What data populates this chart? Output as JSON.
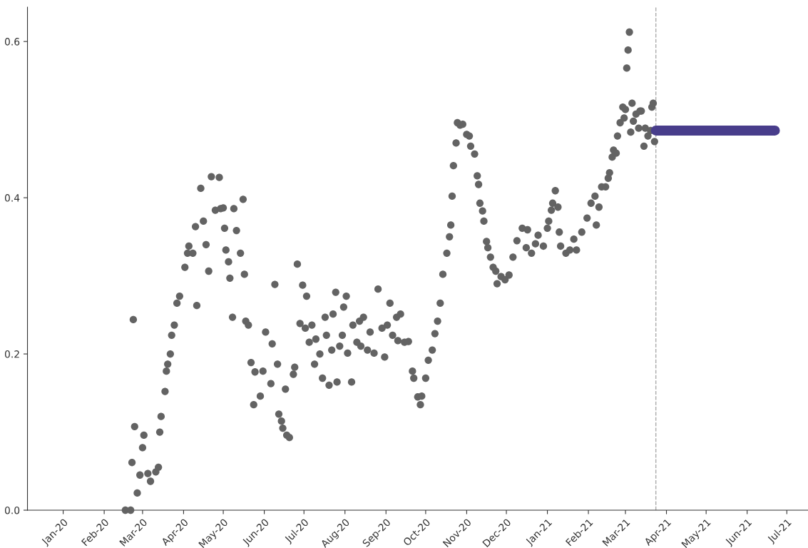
{
  "chart_data": {
    "type": "scatter",
    "grid": false,
    "legend": false,
    "xlim": [
      "2019-12-05",
      "2021-07-17"
    ],
    "ylim": [
      0,
      0.644
    ],
    "xticks": [
      {
        "value": "2020-01-01",
        "label": "Jan-20"
      },
      {
        "value": "2020-02-01",
        "label": "Feb-20"
      },
      {
        "value": "2020-03-01",
        "label": "Mar-20"
      },
      {
        "value": "2020-04-01",
        "label": "Apr-20"
      },
      {
        "value": "2020-05-01",
        "label": "May-20"
      },
      {
        "value": "2020-06-01",
        "label": "Jun-20"
      },
      {
        "value": "2020-07-01",
        "label": "Jul-20"
      },
      {
        "value": "2020-08-01",
        "label": "Aug-20"
      },
      {
        "value": "2020-09-01",
        "label": "Sep-20"
      },
      {
        "value": "2020-10-01",
        "label": "Oct-20"
      },
      {
        "value": "2020-11-01",
        "label": "Nov-20"
      },
      {
        "value": "2020-12-01",
        "label": "Dec-20"
      },
      {
        "value": "2021-01-01",
        "label": "Jan-21"
      },
      {
        "value": "2021-02-01",
        "label": "Feb-21"
      },
      {
        "value": "2021-03-01",
        "label": "Mar-21"
      },
      {
        "value": "2021-04-01",
        "label": "Apr-21"
      },
      {
        "value": "2021-05-01",
        "label": "May-21"
      },
      {
        "value": "2021-06-01",
        "label": "Jun-21"
      },
      {
        "value": "2021-07-01",
        "label": "Jul-21"
      }
    ],
    "yticks": [
      {
        "value": 0,
        "label": "0.0"
      },
      {
        "value": 0.2,
        "label": "0.2"
      },
      {
        "value": 0.4,
        "label": "0.4"
      },
      {
        "value": 0.6,
        "label": "0.6"
      }
    ],
    "ref_lines": [
      {
        "axis": "x",
        "value": "2021-03-24",
        "color": "#aaaaaa",
        "line_style": "dashed"
      }
    ],
    "series": [
      {
        "type": "scatter",
        "marker": "circle",
        "color": "#636363",
        "x": [
          "2020-02-17",
          "2020-02-21",
          "2020-02-22",
          "2020-02-23",
          "2020-02-24",
          "2020-02-26",
          "2020-02-28",
          "2020-03-01",
          "2020-03-02",
          "2020-03-05",
          "2020-03-07",
          "2020-03-11",
          "2020-03-13",
          "2020-03-14",
          "2020-03-15",
          "2020-03-18",
          "2020-03-19",
          "2020-03-20",
          "2020-03-22",
          "2020-03-23",
          "2020-03-25",
          "2020-03-27",
          "2020-03-29",
          "2020-04-02",
          "2020-04-04",
          "2020-04-05",
          "2020-04-08",
          "2020-04-10",
          "2020-04-11",
          "2020-04-14",
          "2020-04-16",
          "2020-04-18",
          "2020-04-20",
          "2020-04-22",
          "2020-04-25",
          "2020-04-28",
          "2020-04-29",
          "2020-05-01",
          "2020-05-02",
          "2020-05-03",
          "2020-05-05",
          "2020-05-06",
          "2020-05-08",
          "2020-05-09",
          "2020-05-11",
          "2020-05-14",
          "2020-05-16",
          "2020-05-17",
          "2020-05-18",
          "2020-05-20",
          "2020-05-22",
          "2020-05-24",
          "2020-05-25",
          "2020-05-29",
          "2020-05-31",
          "2020-06-02",
          "2020-06-06",
          "2020-06-07",
          "2020-06-09",
          "2020-06-11",
          "2020-06-12",
          "2020-06-14",
          "2020-06-15",
          "2020-06-17",
          "2020-06-18",
          "2020-06-20",
          "2020-06-23",
          "2020-06-24",
          "2020-06-26",
          "2020-06-28",
          "2020-06-30",
          "2020-07-02",
          "2020-07-03",
          "2020-07-05",
          "2020-07-07",
          "2020-07-09",
          "2020-07-10",
          "2020-07-13",
          "2020-07-15",
          "2020-07-17",
          "2020-07-18",
          "2020-07-20",
          "2020-07-22",
          "2020-07-23",
          "2020-07-25",
          "2020-07-26",
          "2020-07-28",
          "2020-07-30",
          "2020-07-31",
          "2020-08-02",
          "2020-08-03",
          "2020-08-06",
          "2020-08-07",
          "2020-08-10",
          "2020-08-12",
          "2020-08-13",
          "2020-08-15",
          "2020-08-18",
          "2020-08-20",
          "2020-08-23",
          "2020-08-26",
          "2020-08-29",
          "2020-08-31",
          "2020-09-02",
          "2020-09-04",
          "2020-09-06",
          "2020-09-09",
          "2020-09-10",
          "2020-09-12",
          "2020-09-15",
          "2020-09-18",
          "2020-09-21",
          "2020-09-22",
          "2020-09-25",
          "2020-09-27",
          "2020-09-28",
          "2020-10-01",
          "2020-10-03",
          "2020-10-06",
          "2020-10-08",
          "2020-10-10",
          "2020-10-12",
          "2020-10-14",
          "2020-10-17",
          "2020-10-19",
          "2020-10-20",
          "2020-10-21",
          "2020-10-22",
          "2020-10-24",
          "2020-10-25",
          "2020-10-27",
          "2020-10-29",
          "2020-11-01",
          "2020-11-03",
          "2020-11-04",
          "2020-11-07",
          "2020-11-09",
          "2020-11-10",
          "2020-11-11",
          "2020-11-13",
          "2020-11-14",
          "2020-11-16",
          "2020-11-17",
          "2020-11-19",
          "2020-11-21",
          "2020-11-23",
          "2020-11-24",
          "2020-11-27",
          "2020-11-30",
          "2020-12-03",
          "2020-12-06",
          "2020-12-09",
          "2020-12-13",
          "2020-12-16",
          "2020-12-17",
          "2020-12-20",
          "2020-12-23",
          "2020-12-25",
          "2020-12-29",
          "2021-01-01",
          "2021-01-02",
          "2021-01-04",
          "2021-01-05",
          "2021-01-07",
          "2021-01-09",
          "2021-01-10",
          "2021-01-11",
          "2021-01-15",
          "2021-01-18",
          "2021-01-21",
          "2021-01-23",
          "2021-01-27",
          "2021-01-31",
          "2021-02-03",
          "2021-02-06",
          "2021-02-07",
          "2021-02-09",
          "2021-02-11",
          "2021-02-14",
          "2021-02-16",
          "2021-02-17",
          "2021-02-19",
          "2021-02-20",
          "2021-02-22",
          "2021-02-23",
          "2021-02-25",
          "2021-02-27",
          "2021-02-28",
          "2021-03-01",
          "2021-03-02",
          "2021-03-03",
          "2021-03-04",
          "2021-03-05",
          "2021-03-06",
          "2021-03-07",
          "2021-03-09",
          "2021-03-11",
          "2021-03-12",
          "2021-03-13",
          "2021-03-15",
          "2021-03-16",
          "2021-03-18",
          "2021-03-20",
          "2021-03-21",
          "2021-03-22",
          "2021-03-23"
        ],
        "values": [
          0,
          0,
          0.061,
          0.244,
          0.107,
          0.022,
          0.045,
          0.08,
          0.096,
          0.047,
          0.037,
          0.049,
          0.055,
          0.1,
          0.12,
          0.152,
          0.178,
          0.187,
          0.2,
          0.224,
          0.237,
          0.265,
          0.274,
          0.311,
          0.329,
          0.338,
          0.329,
          0.363,
          0.262,
          0.412,
          0.37,
          0.34,
          0.306,
          0.427,
          0.384,
          0.426,
          0.386,
          0.387,
          0.361,
          0.333,
          0.318,
          0.297,
          0.247,
          0.386,
          0.358,
          0.329,
          0.398,
          0.302,
          0.242,
          0.237,
          0.189,
          0.135,
          0.177,
          0.146,
          0.178,
          0.228,
          0.162,
          0.213,
          0.289,
          0.187,
          0.123,
          0.114,
          0.105,
          0.155,
          0.096,
          0.093,
          0.174,
          0.183,
          0.315,
          0.239,
          0.288,
          0.233,
          0.274,
          0.215,
          0.237,
          0.187,
          0.219,
          0.2,
          0.169,
          0.247,
          0.224,
          0.16,
          0.205,
          0.251,
          0.279,
          0.164,
          0.21,
          0.224,
          0.26,
          0.274,
          0.201,
          0.164,
          0.237,
          0.215,
          0.242,
          0.21,
          0.247,
          0.205,
          0.228,
          0.201,
          0.283,
          0.233,
          0.196,
          0.237,
          0.265,
          0.224,
          0.247,
          0.217,
          0.251,
          0.215,
          0.216,
          0.178,
          0.169,
          0.145,
          0.135,
          0.146,
          0.169,
          0.192,
          0.205,
          0.226,
          0.242,
          0.265,
          0.302,
          0.329,
          0.35,
          0.365,
          0.402,
          0.441,
          0.47,
          0.496,
          0.493,
          0.494,
          0.481,
          0.479,
          0.466,
          0.456,
          0.428,
          0.417,
          0.393,
          0.383,
          0.37,
          0.344,
          0.336,
          0.324,
          0.311,
          0.306,
          0.29,
          0.299,
          0.295,
          0.301,
          0.324,
          0.345,
          0.361,
          0.336,
          0.359,
          0.329,
          0.341,
          0.352,
          0.338,
          0.361,
          0.37,
          0.384,
          0.393,
          0.409,
          0.388,
          0.356,
          0.338,
          0.329,
          0.333,
          0.347,
          0.333,
          0.356,
          0.374,
          0.393,
          0.402,
          0.365,
          0.388,
          0.414,
          0.414,
          0.425,
          0.432,
          0.452,
          0.461,
          0.457,
          0.479,
          0.496,
          0.516,
          0.502,
          0.513,
          0.566,
          0.589,
          0.612,
          0.484,
          0.521,
          0.498,
          0.507,
          0.489,
          0.511,
          0.511,
          0.466,
          0.489,
          0.479,
          0.486,
          0.516,
          0.521,
          0.472
        ]
      },
      {
        "type": "line",
        "color": "#483d8b",
        "line_style": "solid",
        "x": [
          "2021-03-24",
          "2021-06-22"
        ],
        "values": [
          0.486,
          0.486
        ]
      }
    ]
  }
}
